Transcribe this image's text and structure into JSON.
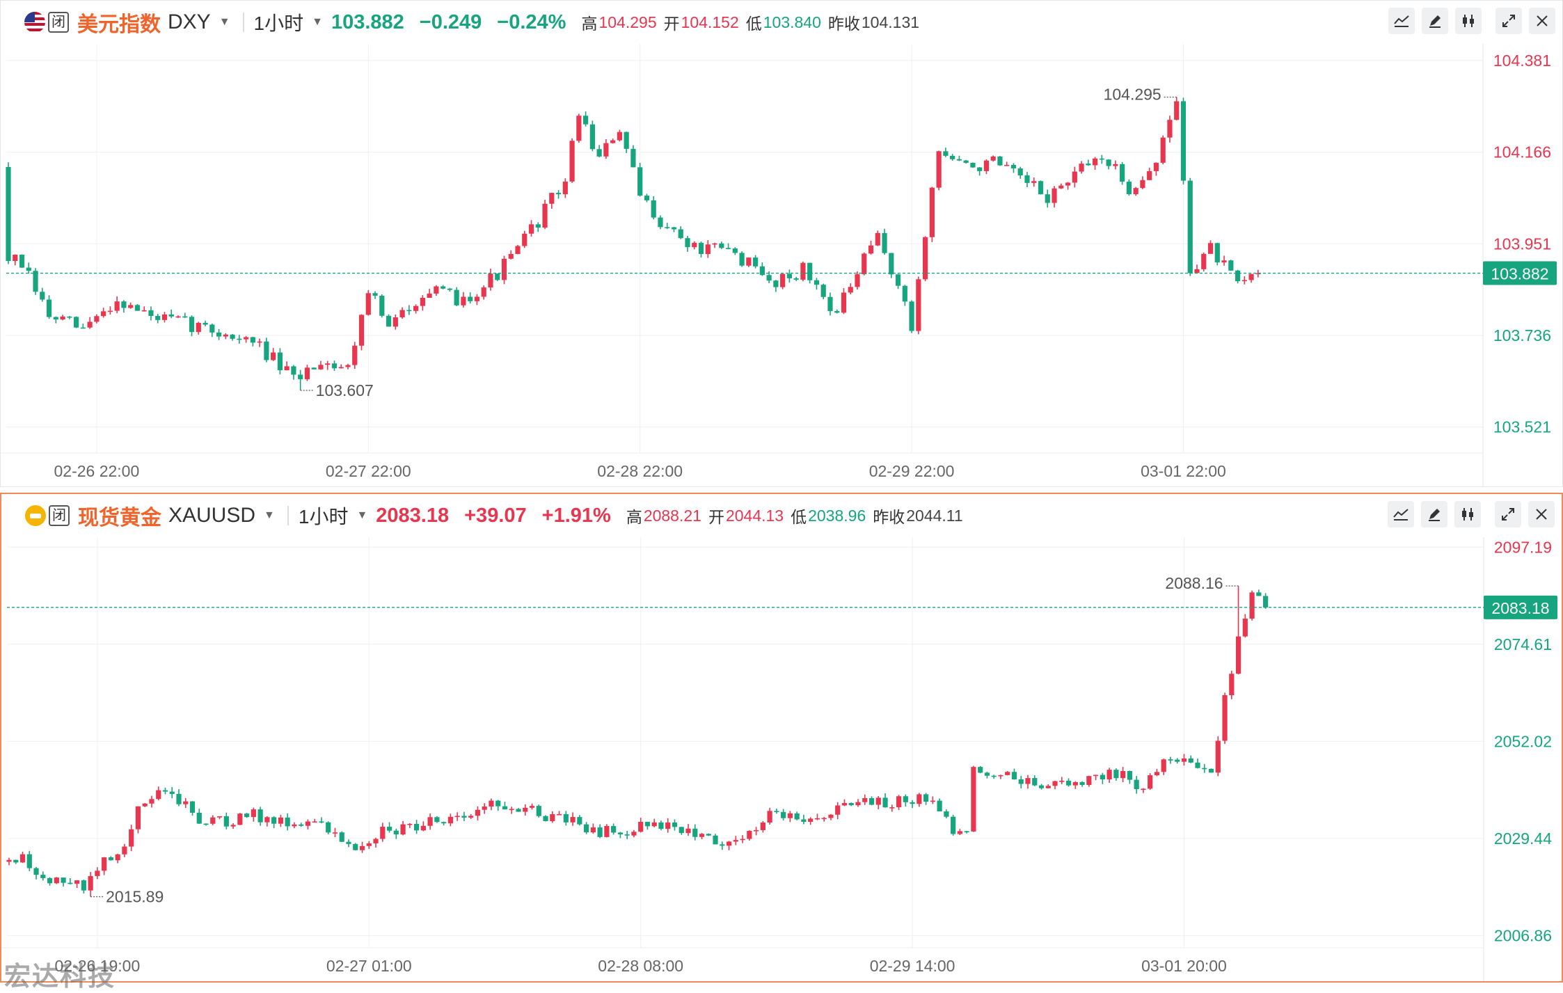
{
  "dxy": {
    "name_cn": "美元指数",
    "code": "DXY",
    "interval": "1小时",
    "status": "闭",
    "price": "103.882",
    "change": "−0.249",
    "change_pct": "−0.24%",
    "high_label": "高",
    "high": "104.295",
    "open_label": "开",
    "open": "104.152",
    "low_label": "低",
    "low": "103.840",
    "prev_label": "昨收",
    "prev": "104.131"
  },
  "gold": {
    "name_cn": "现货黄金",
    "code": "XAUUSD",
    "interval": "1小时",
    "status": "闭",
    "price": "2083.18",
    "change": "+39.07",
    "change_pct": "+1.91%",
    "high_label": "高",
    "high": "2088.21",
    "open_label": "开",
    "open": "2044.13",
    "low_label": "低",
    "low": "2038.96",
    "prev_label": "昨收",
    "prev": "2044.11"
  },
  "colors": {
    "up": "#e8364f",
    "down": "#16a57f",
    "grid": "#f0f0f0",
    "last_line": "#16a57f",
    "highlight_border": "#ef8a5a"
  },
  "tools": [
    "indicator-icon",
    "draw-icon",
    "candles-icon",
    "expand-icon",
    "close-icon"
  ],
  "watermark": "宏达科技",
  "chart_data": [
    {
      "type": "candlestick",
      "title": "美元指数 DXY",
      "interval": "1小时",
      "ylim": [
        103.46,
        104.42
      ],
      "y_ticks": [
        104.381,
        104.166,
        103.951,
        103.736,
        103.521
      ],
      "x_tick_labels": [
        "02-26 22:00",
        "02-27 22:00",
        "02-28 22:00",
        "02-29 22:00",
        "03-01 22:00"
      ],
      "x_tick_index": [
        13,
        53,
        93,
        133,
        173
      ],
      "last_price": 103.882,
      "annotations": [
        {
          "label": "104.295",
          "index": 172,
          "value": 104.295
        },
        {
          "label": "103.607",
          "index": 43,
          "value": 103.607
        }
      ],
      "start": 104.131,
      "candles": 185,
      "waypoints": [
        [
          0,
          103.93
        ],
        [
          3,
          103.9
        ],
        [
          7,
          103.78
        ],
        [
          12,
          103.75
        ],
        [
          17,
          103.82
        ],
        [
          22,
          103.78
        ],
        [
          28,
          103.76
        ],
        [
          33,
          103.74
        ],
        [
          38,
          103.71
        ],
        [
          43,
          103.63
        ],
        [
          47,
          103.68
        ],
        [
          51,
          103.66
        ],
        [
          54,
          103.85
        ],
        [
          57,
          103.75
        ],
        [
          62,
          103.84
        ],
        [
          68,
          103.82
        ],
        [
          73,
          103.88
        ],
        [
          77,
          103.96
        ],
        [
          80,
          104.03
        ],
        [
          83,
          104.1
        ],
        [
          85,
          104.26
        ],
        [
          88,
          104.15
        ],
        [
          91,
          104.22
        ],
        [
          94,
          104.06
        ],
        [
          98,
          103.99
        ],
        [
          102,
          103.94
        ],
        [
          108,
          103.93
        ],
        [
          113,
          103.86
        ],
        [
          118,
          103.89
        ],
        [
          123,
          103.79
        ],
        [
          126,
          103.88
        ],
        [
          129,
          103.97
        ],
        [
          132,
          103.85
        ],
        [
          134,
          103.75
        ],
        [
          136,
          103.98
        ],
        [
          138,
          104.17
        ],
        [
          142,
          104.13
        ],
        [
          146,
          104.14
        ],
        [
          150,
          104.1
        ],
        [
          154,
          104.06
        ],
        [
          158,
          104.11
        ],
        [
          162,
          104.16
        ],
        [
          166,
          104.08
        ],
        [
          170,
          104.14
        ],
        [
          173,
          104.29
        ],
        [
          175,
          103.89
        ],
        [
          178,
          103.94
        ],
        [
          182,
          103.85
        ],
        [
          185,
          103.882
        ]
      ]
    },
    {
      "type": "candlestick",
      "title": "现货黄金 XAUUSD",
      "interval": "1小时",
      "ylim": [
        2004.0,
        2099.5
      ],
      "y_ticks": [
        2097.19,
        2074.61,
        2052.02,
        2029.44,
        2006.86
      ],
      "x_tick_labels": [
        "02-26 19:00",
        "02-27 01:00",
        "02-28 08:00",
        "02-29 14:00",
        "03-01 20:00"
      ],
      "x_tick_index": [
        13,
        53,
        93,
        133,
        173
      ],
      "last_price": 2083.18,
      "annotations": [
        {
          "label": "2088.16",
          "index": 181,
          "value": 2088.16
        },
        {
          "label": "2015.89",
          "index": 12,
          "value": 2015.89
        }
      ],
      "start": 2024.0,
      "candles": 186,
      "waypoints": [
        [
          0,
          2025.5
        ],
        [
          3,
          2024.5
        ],
        [
          6,
          2020.0
        ],
        [
          9,
          2019.0
        ],
        [
          12,
          2018.0
        ],
        [
          15,
          2024.0
        ],
        [
          18,
          2028.0
        ],
        [
          20,
          2036.0
        ],
        [
          23,
          2040.0
        ],
        [
          26,
          2038.0
        ],
        [
          29,
          2034.0
        ],
        [
          33,
          2033.0
        ],
        [
          37,
          2035.0
        ],
        [
          41,
          2033.0
        ],
        [
          45,
          2034.0
        ],
        [
          49,
          2030.0
        ],
        [
          52,
          2028.0
        ],
        [
          56,
          2031.0
        ],
        [
          60,
          2032.0
        ],
        [
          64,
          2034.0
        ],
        [
          68,
          2035.0
        ],
        [
          72,
          2037.0
        ],
        [
          76,
          2037.0
        ],
        [
          79,
          2035.0
        ],
        [
          83,
          2034.0
        ],
        [
          87,
          2031.0
        ],
        [
          91,
          2031.0
        ],
        [
          95,
          2033.0
        ],
        [
          99,
          2032.0
        ],
        [
          103,
          2030.0
        ],
        [
          107,
          2028.0
        ],
        [
          111,
          2032.0
        ],
        [
          113,
          2036.0
        ],
        [
          117,
          2034.0
        ],
        [
          121,
          2035.0
        ],
        [
          125,
          2037.0
        ],
        [
          129,
          2038.0
        ],
        [
          133,
          2038.0
        ],
        [
          137,
          2039.0
        ],
        [
          140,
          2031.0
        ],
        [
          142,
          2030.0
        ],
        [
          143,
          2045.0
        ],
        [
          146,
          2045.0
        ],
        [
          149,
          2043.0
        ],
        [
          153,
          2042.0
        ],
        [
          157,
          2042.0
        ],
        [
          161,
          2044.0
        ],
        [
          165,
          2045.0
        ],
        [
          168,
          2040.0
        ],
        [
          170,
          2046.0
        ],
        [
          173,
          2048.0
        ],
        [
          176,
          2046.0
        ],
        [
          178,
          2045.0
        ],
        [
          180,
          2062.0
        ],
        [
          182,
          2076.0
        ],
        [
          184,
          2086.0
        ],
        [
          186,
          2083.18
        ]
      ]
    }
  ]
}
